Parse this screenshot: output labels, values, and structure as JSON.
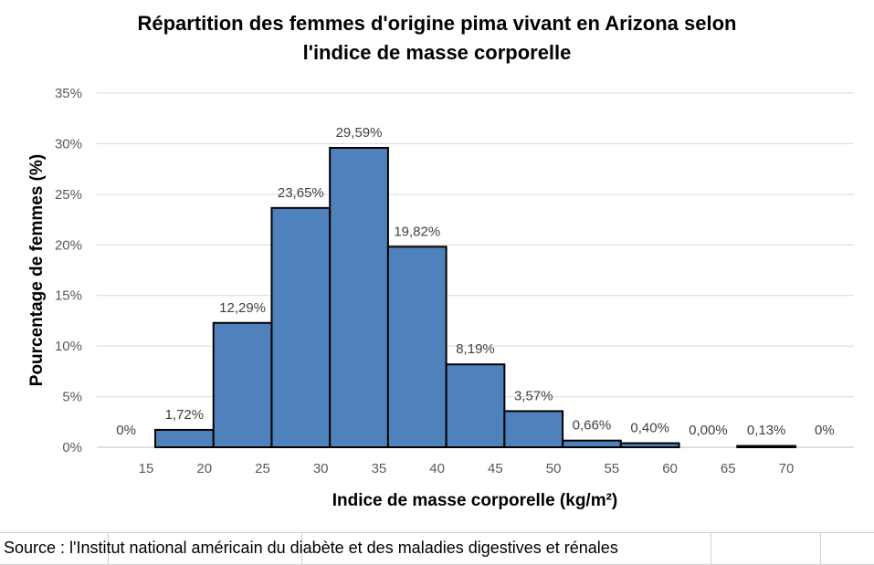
{
  "chart_data": {
    "type": "bar",
    "title_lines": [
      "Répartition des femmes d'origine pima vivant en Arizona selon",
      "l'indice de masse corporelle"
    ],
    "xlabel": "Indice de masse corporelle (kg/m²)",
    "ylabel": "Pourcentage de femmes (%)",
    "x_ticks": [
      "15",
      "20",
      "25",
      "30",
      "35",
      "40",
      "45",
      "50",
      "55",
      "60",
      "65",
      "70"
    ],
    "y_ticks": [
      "0%",
      "5%",
      "10%",
      "15%",
      "20%",
      "25%",
      "30%",
      "35%"
    ],
    "ylim": [
      0,
      35
    ],
    "grid": true,
    "bar_color": "#4f81bd",
    "bins": [
      {
        "start": 10,
        "end": 15,
        "value": 0,
        "label": "0%"
      },
      {
        "start": 15,
        "end": 20,
        "value": 1.72,
        "label": "1,72%"
      },
      {
        "start": 20,
        "end": 25,
        "value": 12.29,
        "label": "12,29%"
      },
      {
        "start": 25,
        "end": 30,
        "value": 23.65,
        "label": "23,65%"
      },
      {
        "start": 30,
        "end": 35,
        "value": 29.59,
        "label": "29,59%"
      },
      {
        "start": 35,
        "end": 40,
        "value": 19.82,
        "label": "19,82%"
      },
      {
        "start": 40,
        "end": 45,
        "value": 8.19,
        "label": "8,19%"
      },
      {
        "start": 45,
        "end": 50,
        "value": 3.57,
        "label": "3,57%"
      },
      {
        "start": 50,
        "end": 55,
        "value": 0.66,
        "label": "0,66%"
      },
      {
        "start": 55,
        "end": 60,
        "value": 0.4,
        "label": "0,40%"
      },
      {
        "start": 60,
        "end": 65,
        "value": 0.0,
        "label": "0,00%"
      },
      {
        "start": 65,
        "end": 70,
        "value": 0.13,
        "label": "0,13%"
      },
      {
        "start": 70,
        "end": 75,
        "value": 0,
        "label": "0%"
      }
    ]
  },
  "source": "Source : l'Institut national américain du diabète et des maladies digestives et rénales"
}
